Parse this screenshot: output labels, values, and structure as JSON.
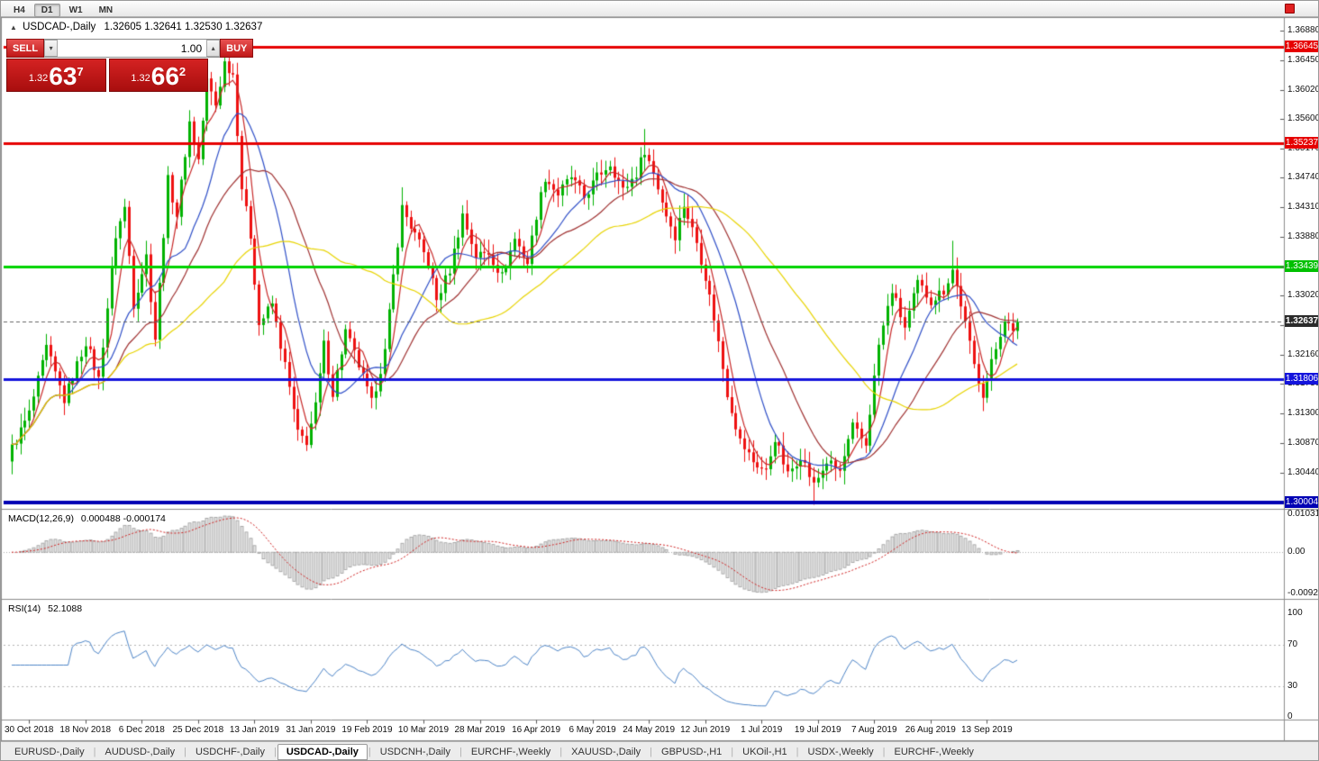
{
  "window": {
    "title": "USDCAD-,Daily"
  },
  "toolbar": {
    "timeframes": [
      "H4",
      "D1",
      "W1",
      "MN"
    ],
    "active_timeframe": "D1"
  },
  "icons": {
    "chart_marker": "▲",
    "volume_up": "▴",
    "volume_down": "▾",
    "red_square": "red-square"
  },
  "header": {
    "symbol_title": "USDCAD-,Daily",
    "ohlc": "1.32605 1.32641 1.32530 1.32637"
  },
  "trade_panel": {
    "sell_label": "SELL",
    "buy_label": "BUY",
    "volume": "1.00",
    "sell_price": {
      "base": "1.32",
      "pips": "63",
      "pipette": "7"
    },
    "buy_price": {
      "base": "1.32",
      "pips": "66",
      "pipette": "2"
    }
  },
  "price_axis": {
    "ticks": [
      "1.36880",
      "1.36450",
      "1.36020",
      "1.35600",
      "1.35170",
      "1.34740",
      "1.34310",
      "1.33880",
      "1.33450",
      "1.33020",
      "1.32590",
      "1.32160",
      "1.31730",
      "1.31300",
      "1.30870",
      "1.30440"
    ]
  },
  "levels": [
    {
      "label": "1.36645",
      "value": 1.36645,
      "color": "#e60000",
      "badge_bg": "#e60000",
      "width": 3
    },
    {
      "label": "1.35237",
      "value": 1.35237,
      "color": "#e60000",
      "badge_bg": "#e60000",
      "width": 3
    },
    {
      "label": "1.33439",
      "value": 1.33439,
      "color": "#00d400",
      "badge_bg": "#00c000",
      "width": 3
    },
    {
      "label": "1.31806",
      "value": 1.31806,
      "color": "#1414dc",
      "badge_bg": "#1414dc",
      "width": 3
    },
    {
      "label": "1.30004",
      "value": 1.30004,
      "color": "#0000b4",
      "badge_bg": "#0000b4",
      "width": 4
    }
  ],
  "current_price": {
    "label": "1.32637",
    "value": 1.32637,
    "badge_bg": "#2b2b2b"
  },
  "macd_panel": {
    "label": "MACD(12,26,9)",
    "values": "0.000488 -0.000174",
    "axis_top": "0.010311",
    "axis_mid": "0.00",
    "axis_bottom": "-0.0092903"
  },
  "rsi_panel": {
    "label": "RSI(14)",
    "value": "52.1088",
    "axis": [
      "100",
      "70",
      "30",
      "0"
    ],
    "upper_level": 70,
    "lower_level": 30
  },
  "date_axis": [
    "30 Oct 2018",
    "18 Nov 2018",
    "6 Dec 2018",
    "25 Dec 2018",
    "13 Jan 2019",
    "31 Jan 2019",
    "19 Feb 2019",
    "10 Mar 2019",
    "28 Mar 2019",
    "16 Apr 2019",
    "6 May 2019",
    "24 May 2019",
    "12 Jun 2019",
    "1 Jul 2019",
    "19 Jul 2019",
    "7 Aug 2019",
    "26 Aug 2019",
    "13 Sep 2019"
  ],
  "tabs": {
    "items": [
      "EURUSD-,Daily",
      "AUDUSD-,Daily",
      "USDCHF-,Daily",
      "USDCAD-,Daily",
      "USDCNH-,Daily",
      "EURCHF-,Weekly",
      "XAUUSD-,Daily",
      "GBPUSD-,H1",
      "UKOil-,H1",
      "USDX-,Weekly",
      "EURCHF-,Weekly"
    ],
    "active_index": 3
  },
  "chart_data": {
    "type": "candlestick",
    "symbol": "USDCAD",
    "timeframe": "Daily",
    "bar_count": 233,
    "ylim": [
      1.2995,
      1.3695
    ],
    "last_close": 1.32637,
    "noise": 0.0008,
    "close_anchors": [
      [
        0,
        1.308
      ],
      [
        4,
        1.313
      ],
      [
        8,
        1.3225
      ],
      [
        12,
        1.315
      ],
      [
        17,
        1.3235
      ],
      [
        20,
        1.318
      ],
      [
        24,
        1.339
      ],
      [
        26,
        1.343
      ],
      [
        28,
        1.329
      ],
      [
        31,
        1.336
      ],
      [
        33,
        1.324
      ],
      [
        36,
        1.347
      ],
      [
        38,
        1.342
      ],
      [
        41,
        1.3555
      ],
      [
        43,
        1.35
      ],
      [
        45,
        1.3615
      ],
      [
        47,
        1.358
      ],
      [
        49,
        1.3642
      ],
      [
        51,
        1.3625
      ],
      [
        53,
        1.346
      ],
      [
        55,
        1.339
      ],
      [
        57,
        1.326
      ],
      [
        60,
        1.329
      ],
      [
        63,
        1.32
      ],
      [
        66,
        1.31
      ],
      [
        68,
        1.309
      ],
      [
        70,
        1.314
      ],
      [
        72,
        1.323
      ],
      [
        74,
        1.316
      ],
      [
        77,
        1.325
      ],
      [
        80,
        1.32
      ],
      [
        83,
        1.3145
      ],
      [
        86,
        1.322
      ],
      [
        88,
        1.333
      ],
      [
        90,
        1.343
      ],
      [
        93,
        1.339
      ],
      [
        96,
        1.335
      ],
      [
        98,
        1.3295
      ],
      [
        101,
        1.334
      ],
      [
        104,
        1.342
      ],
      [
        107,
        1.336
      ],
      [
        110,
        1.3365
      ],
      [
        113,
        1.333
      ],
      [
        116,
        1.3385
      ],
      [
        119,
        1.335
      ],
      [
        121,
        1.342
      ],
      [
        123,
        1.3475
      ],
      [
        126,
        1.345
      ],
      [
        129,
        1.3475
      ],
      [
        132,
        1.3445
      ],
      [
        135,
        1.3475
      ],
      [
        138,
        1.3495
      ],
      [
        141,
        1.3455
      ],
      [
        144,
        1.348
      ],
      [
        146,
        1.3515
      ],
      [
        148,
        1.348
      ],
      [
        151,
        1.342
      ],
      [
        153,
        1.339
      ],
      [
        155,
        1.3435
      ],
      [
        158,
        1.338
      ],
      [
        160,
        1.333
      ],
      [
        162,
        1.327
      ],
      [
        165,
        1.316
      ],
      [
        168,
        1.309
      ],
      [
        171,
        1.306
      ],
      [
        174,
        1.3045
      ],
      [
        176,
        1.3095
      ],
      [
        179,
        1.304
      ],
      [
        182,
        1.307
      ],
      [
        185,
        1.3025
      ],
      [
        188,
        1.306
      ],
      [
        191,
        1.3045
      ],
      [
        194,
        1.311
      ],
      [
        197,
        1.3085
      ],
      [
        200,
        1.323
      ],
      [
        203,
        1.331
      ],
      [
        206,
        1.3255
      ],
      [
        209,
        1.332
      ],
      [
        212,
        1.3295
      ],
      [
        215,
        1.331
      ],
      [
        217,
        1.334
      ],
      [
        219,
        1.329
      ],
      [
        222,
        1.32
      ],
      [
        224,
        1.316
      ],
      [
        227,
        1.3225
      ],
      [
        229,
        1.327
      ],
      [
        231,
        1.3245
      ],
      [
        232,
        1.32637
      ]
    ],
    "wick_events": [
      {
        "i": 49,
        "high": 1.366
      },
      {
        "i": 90,
        "high": 1.346
      },
      {
        "i": 146,
        "high": 1.3545
      },
      {
        "i": 185,
        "low": 1.2997
      },
      {
        "i": 217,
        "high": 1.3382
      }
    ],
    "moving_averages": [
      {
        "period": 5,
        "color": "#c82828"
      },
      {
        "period": 14,
        "color": "#3050c8"
      },
      {
        "period": 25,
        "color": "#a03232"
      },
      {
        "period": 50,
        "color": "#e8d400"
      }
    ],
    "up_color": "#00b200",
    "down_color": "#ee1111",
    "indicators": {
      "macd": {
        "fast": 12,
        "slow": 26,
        "signal": 9,
        "hist_fill": "#e6e6e6",
        "hist_stroke": "#9c9c9c",
        "signal_color": "#d02020"
      },
      "rsi": {
        "period": 14,
        "color": "#4f86c8"
      }
    },
    "label_step": 13,
    "first_label_index": 4
  }
}
